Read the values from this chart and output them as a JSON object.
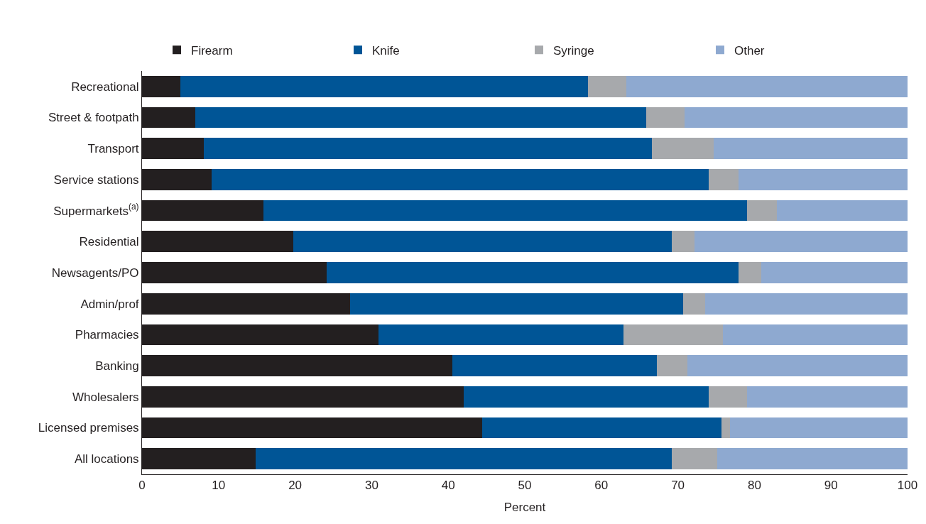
{
  "chart_data": {
    "type": "bar",
    "orientation": "horizontal",
    "stacked": true,
    "xlabel": "Percent",
    "legend": "top",
    "xlim": [
      0,
      100
    ],
    "xticks": [
      0,
      10,
      20,
      30,
      40,
      50,
      60,
      70,
      80,
      90,
      100
    ],
    "categories": [
      "Recreational",
      "Street & footpath",
      "Transport",
      "Service stations",
      "Supermarkets$^{(a)}$",
      "Residential",
      "Newsagents/PO",
      "Admin/prof",
      "Pharmacies",
      "Banking",
      "Wholesalers",
      "Licensed premises",
      "All locations"
    ],
    "series": [
      {
        "name": "Firearm",
        "color": "#231f20",
        "values": [
          5.0,
          7.0,
          8.1,
          9.1,
          15.9,
          19.8,
          24.1,
          27.2,
          30.9,
          40.5,
          42.0,
          44.4,
          14.8
        ]
      },
      {
        "name": "Knife",
        "color": "#005596",
        "values": [
          53.3,
          58.9,
          58.5,
          64.9,
          63.1,
          49.4,
          53.8,
          43.5,
          32.0,
          26.8,
          32.0,
          31.3,
          54.4
        ]
      },
      {
        "name": "Syringe",
        "color": "#a7a9ac",
        "values": [
          5.0,
          5.0,
          8.1,
          3.9,
          3.9,
          3.0,
          3.0,
          2.9,
          13.0,
          3.9,
          5.0,
          1.1,
          5.9
        ]
      },
      {
        "name": "Other",
        "color": "#8ea9d0",
        "values": [
          36.7,
          29.1,
          25.3,
          22.1,
          17.1,
          27.8,
          19.1,
          26.4,
          24.1,
          28.8,
          21.0,
          23.2,
          24.9
        ]
      }
    ]
  }
}
